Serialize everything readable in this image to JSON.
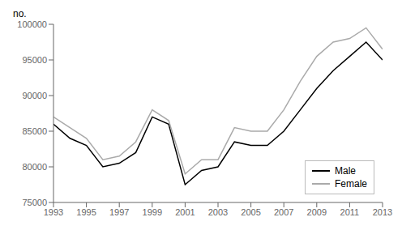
{
  "chart_data": {
    "type": "line",
    "ylabel": "no.",
    "x": [
      1993,
      1994,
      1995,
      1996,
      1997,
      1998,
      1999,
      2000,
      2001,
      2002,
      2003,
      2004,
      2005,
      2006,
      2007,
      2008,
      2009,
      2010,
      2011,
      2012,
      2013
    ],
    "series": [
      {
        "name": "Male",
        "color": "#000000",
        "values": [
          86000,
          84000,
          83000,
          80000,
          80500,
          82000,
          87000,
          86000,
          77500,
          79500,
          80000,
          83500,
          83000,
          83000,
          85000,
          88000,
          91000,
          93500,
          95500,
          97500,
          95000
        ]
      },
      {
        "name": "Female",
        "color": "#aaaaaa",
        "values": [
          87000,
          85500,
          84000,
          81000,
          81500,
          83500,
          88000,
          86500,
          79000,
          81000,
          81000,
          85500,
          85000,
          85000,
          88000,
          92000,
          95500,
          97500,
          98000,
          99500,
          96500
        ]
      }
    ],
    "xlim": [
      1993,
      2013
    ],
    "xticks": [
      1993,
      1995,
      1997,
      1999,
      2001,
      2003,
      2005,
      2007,
      2009,
      2011,
      2013
    ],
    "ylim": [
      75000,
      100000
    ],
    "yticks": [
      75000,
      80000,
      85000,
      90000,
      95000,
      100000
    ],
    "grid": false,
    "legend": "lower right"
  }
}
